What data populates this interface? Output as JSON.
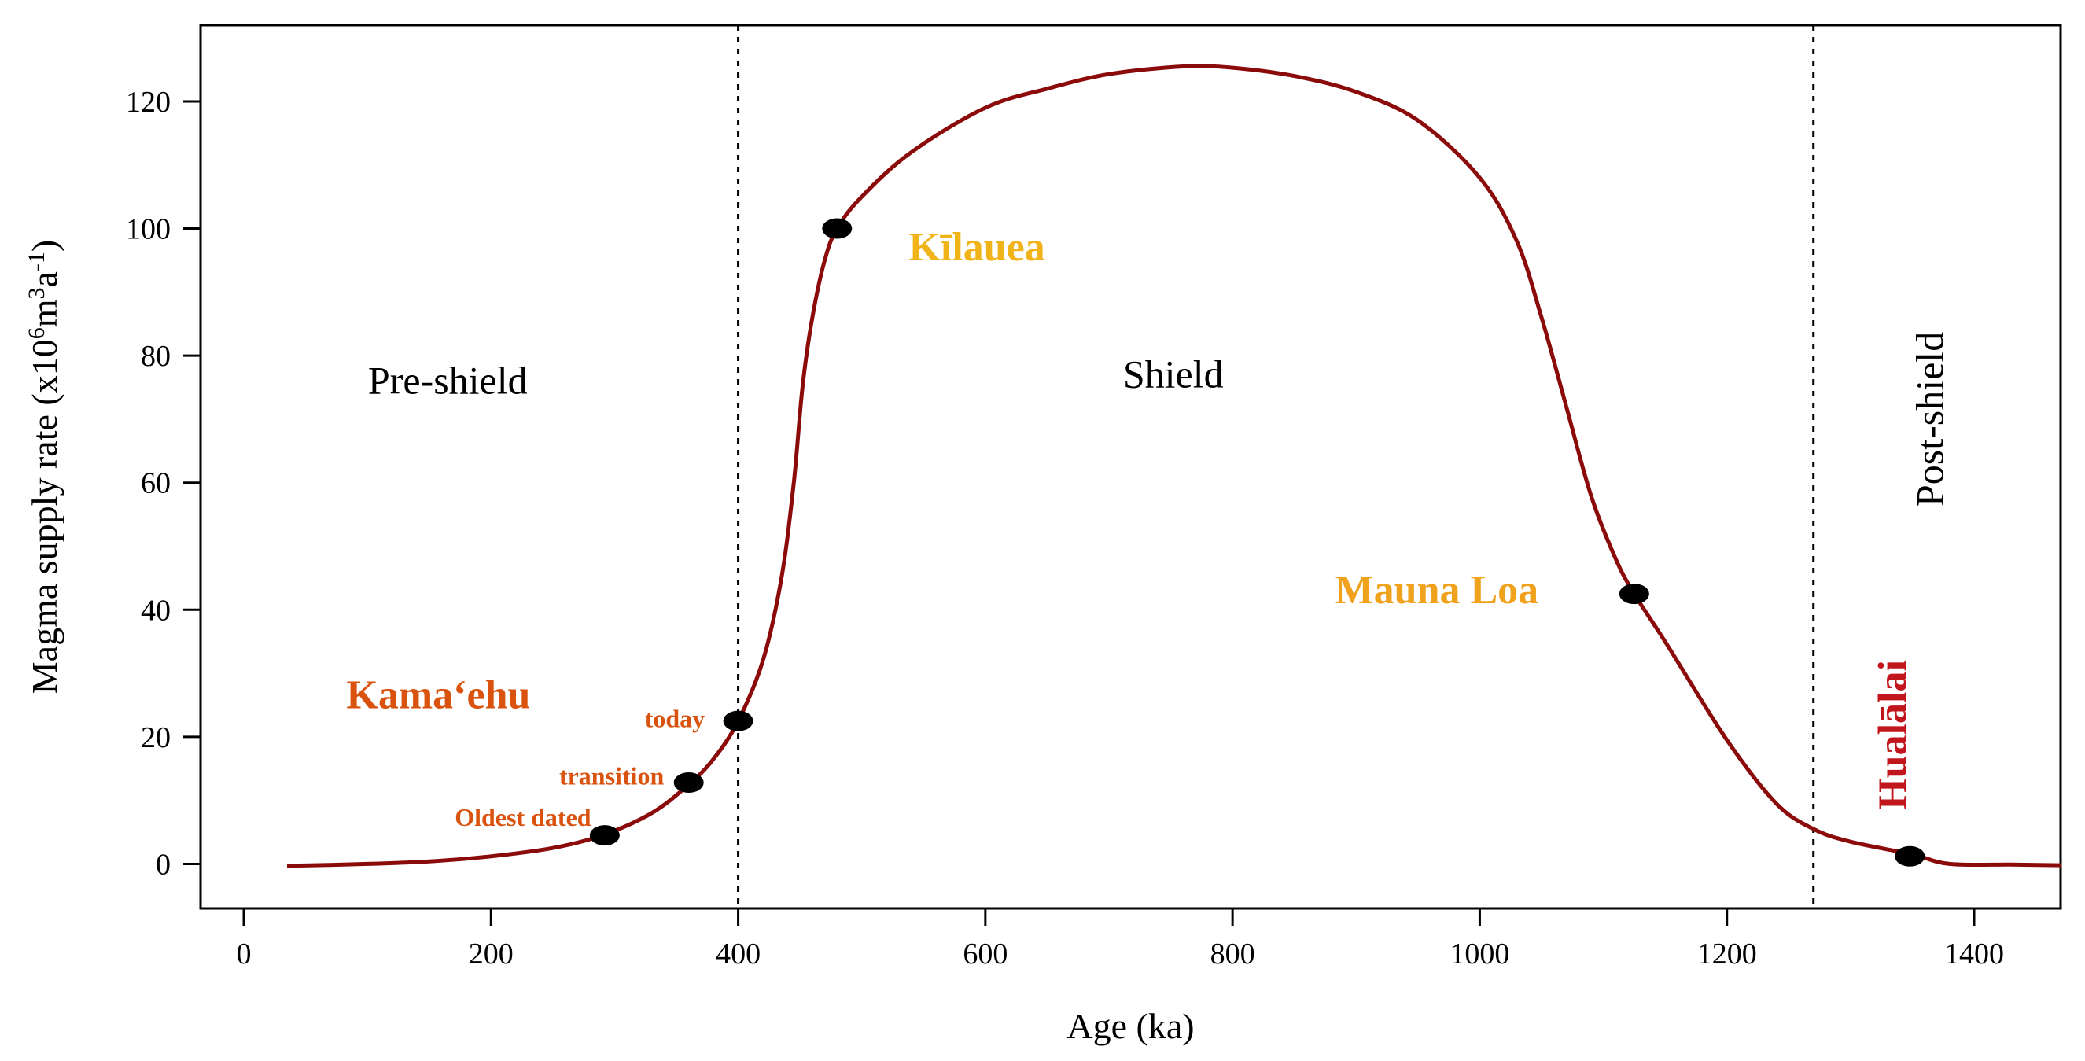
{
  "chart_data": {
    "type": "line",
    "xlabel": "Age (ka)",
    "ylabel_main": "Magma supply rate (x10",
    "ylabel_sup1": "6",
    "ylabel_mid1": "m",
    "ylabel_sup2": "3",
    "ylabel_mid2": "a",
    "ylabel_sup3": "-1",
    "ylabel_end": ")",
    "xlim": [
      -35,
      1470
    ],
    "ylim": [
      -7,
      132
    ],
    "xticks": [
      0,
      200,
      400,
      600,
      800,
      1000,
      1200,
      1400
    ],
    "yticks": [
      0,
      20,
      40,
      60,
      80,
      100,
      120
    ],
    "grid": false,
    "line_color": "#8b0a0a",
    "phase_boundaries": [
      400,
      1270
    ],
    "phase_labels": [
      {
        "text": "Pre-shield",
        "x": 165,
        "y": 74,
        "rotate": 0
      },
      {
        "text": "Shield",
        "x": 752,
        "y": 75,
        "rotate": 0
      },
      {
        "text": "Post-shield",
        "x": 1375,
        "y": 70,
        "rotate": -90
      }
    ],
    "series": [
      {
        "points": [
          [
            35,
            -0.3
          ],
          [
            100,
            0
          ],
          [
            150,
            0.4
          ],
          [
            200,
            1.2
          ],
          [
            250,
            2.5
          ],
          [
            290,
            4.5
          ],
          [
            330,
            8
          ],
          [
            360,
            12.5
          ],
          [
            380,
            16.5
          ],
          [
            400,
            22.5
          ],
          [
            420,
            32
          ],
          [
            435,
            45
          ],
          [
            445,
            60
          ],
          [
            452,
            75
          ],
          [
            460,
            86
          ],
          [
            470,
            95
          ],
          [
            480,
            100
          ],
          [
            500,
            105
          ],
          [
            540,
            112
          ],
          [
            600,
            119
          ],
          [
            650,
            122
          ],
          [
            700,
            124.3
          ],
          [
            760,
            125.5
          ],
          [
            800,
            125.3
          ],
          [
            850,
            124
          ],
          [
            900,
            121.5
          ],
          [
            950,
            117
          ],
          [
            1000,
            108
          ],
          [
            1030,
            98
          ],
          [
            1050,
            86
          ],
          [
            1070,
            72
          ],
          [
            1090,
            58
          ],
          [
            1110,
            48
          ],
          [
            1125,
            42.5
          ],
          [
            1150,
            35
          ],
          [
            1200,
            19.5
          ],
          [
            1240,
            9.5
          ],
          [
            1270,
            5.5
          ],
          [
            1300,
            3.5
          ],
          [
            1350,
            1.5
          ],
          [
            1380,
            0
          ],
          [
            1430,
            -0.1
          ],
          [
            1470,
            -0.2
          ]
        ]
      }
    ],
    "markers": [
      {
        "x": 292,
        "y": 4.5
      },
      {
        "x": 360,
        "y": 12.8
      },
      {
        "x": 400,
        "y": 22.5
      },
      {
        "x": 480,
        "y": 100
      },
      {
        "x": 1125,
        "y": 42.5
      },
      {
        "x": 1348,
        "y": 1.2
      }
    ],
    "volcano_labels": [
      {
        "text": "Kamaʻehu",
        "x": 83,
        "y": 24.5,
        "color": "#d9530f",
        "rotate": 0
      },
      {
        "text": "Kīlauea",
        "x": 538,
        "y": 95,
        "color": "#f0b418",
        "rotate": 0
      },
      {
        "text": "Mauna Loa",
        "x": 883,
        "y": 41,
        "color": "#f0a21c",
        "rotate": 0
      },
      {
        "text": "Hualālai",
        "x": 1345,
        "y": 8.5,
        "color": "#c0161c",
        "rotate": -90
      }
    ],
    "event_labels": [
      {
        "text": "today",
        "x": 373,
        "y": 21.5,
        "color": "#d9530f"
      },
      {
        "text": "transition",
        "x": 340,
        "y": 12.5,
        "color": "#d9530f"
      },
      {
        "text": "Oldest dated",
        "x": 281,
        "y": 6,
        "color": "#d9530f"
      }
    ]
  }
}
